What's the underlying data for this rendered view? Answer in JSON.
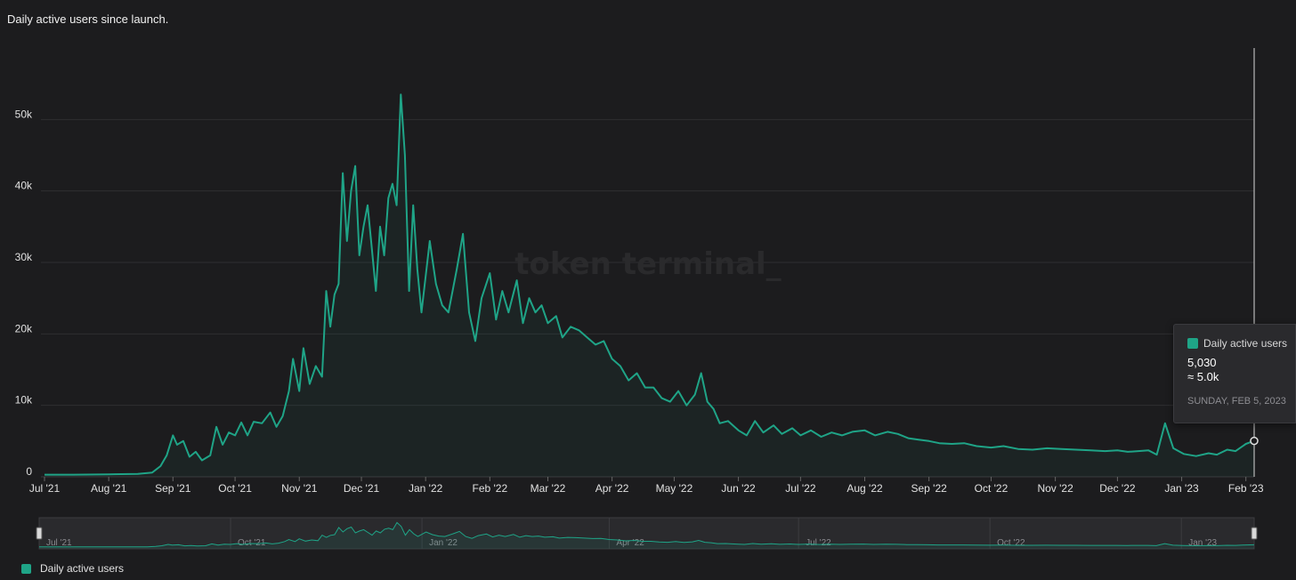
{
  "title": "Daily active users since launch.",
  "watermark": "token terminal_",
  "accent_color": "#1fa487",
  "chart_data": {
    "type": "area",
    "title": "Daily active users since launch.",
    "xlabel": "",
    "ylabel": "",
    "ylim": [
      0,
      60000
    ],
    "y_ticks": [
      0,
      10000,
      20000,
      30000,
      40000,
      50000
    ],
    "y_tick_labels": [
      "0",
      "10k",
      "20k",
      "30k",
      "40k",
      "50k"
    ],
    "x_tick_dates": [
      "2021-07-01",
      "2021-08-01",
      "2021-09-01",
      "2021-10-01",
      "2021-11-01",
      "2021-12-01",
      "2022-01-01",
      "2022-02-01",
      "2022-03-01",
      "2022-04-01",
      "2022-05-01",
      "2022-06-01",
      "2022-07-01",
      "2022-08-01",
      "2022-09-01",
      "2022-10-01",
      "2022-11-01",
      "2022-12-01",
      "2023-01-01",
      "2023-02-01"
    ],
    "x_tick_labels": [
      "Jul '21",
      "Aug '21",
      "Sep '21",
      "Oct '21",
      "Nov '21",
      "Dec '21",
      "Jan '22",
      "Feb '22",
      "Mar '22",
      "Apr '22",
      "May '22",
      "Jun '22",
      "Jul '22",
      "Aug '22",
      "Sep '22",
      "Oct '22",
      "Nov '22",
      "Dec '22",
      "Jan '23",
      "Feb '23"
    ],
    "xlim": [
      "2021-07-01",
      "2023-02-05"
    ],
    "grid": true,
    "legend": "bottom-left",
    "series": [
      {
        "name": "Daily active users",
        "color": "#1fa487",
        "points": [
          [
            "2021-07-01",
            300
          ],
          [
            "2021-07-15",
            300
          ],
          [
            "2021-08-01",
            350
          ],
          [
            "2021-08-15",
            400
          ],
          [
            "2021-08-22",
            600
          ],
          [
            "2021-08-26",
            1500
          ],
          [
            "2021-08-29",
            3000
          ],
          [
            "2021-09-01",
            5800
          ],
          [
            "2021-09-03",
            4500
          ],
          [
            "2021-09-06",
            5000
          ],
          [
            "2021-09-09",
            2800
          ],
          [
            "2021-09-12",
            3500
          ],
          [
            "2021-09-15",
            2300
          ],
          [
            "2021-09-19",
            3000
          ],
          [
            "2021-09-22",
            7000
          ],
          [
            "2021-09-25",
            4500
          ],
          [
            "2021-09-28",
            6200
          ],
          [
            "2021-10-01",
            5800
          ],
          [
            "2021-10-04",
            7600
          ],
          [
            "2021-10-07",
            5800
          ],
          [
            "2021-10-10",
            7700
          ],
          [
            "2021-10-14",
            7500
          ],
          [
            "2021-10-18",
            9000
          ],
          [
            "2021-10-21",
            7000
          ],
          [
            "2021-10-24",
            8500
          ],
          [
            "2021-10-27",
            12000
          ],
          [
            "2021-10-29",
            16500
          ],
          [
            "2021-11-01",
            12000
          ],
          [
            "2021-11-03",
            18000
          ],
          [
            "2021-11-06",
            13000
          ],
          [
            "2021-11-09",
            15500
          ],
          [
            "2021-11-12",
            14000
          ],
          [
            "2021-11-14",
            26000
          ],
          [
            "2021-11-16",
            21000
          ],
          [
            "2021-11-18",
            25500
          ],
          [
            "2021-11-20",
            27000
          ],
          [
            "2021-11-22",
            42500
          ],
          [
            "2021-11-24",
            33000
          ],
          [
            "2021-11-26",
            40000
          ],
          [
            "2021-11-28",
            43500
          ],
          [
            "2021-11-30",
            31000
          ],
          [
            "2021-12-02",
            35000
          ],
          [
            "2021-12-04",
            38000
          ],
          [
            "2021-12-06",
            32000
          ],
          [
            "2021-12-08",
            26000
          ],
          [
            "2021-12-10",
            35000
          ],
          [
            "2021-12-12",
            31000
          ],
          [
            "2021-12-14",
            39000
          ],
          [
            "2021-12-16",
            41000
          ],
          [
            "2021-12-18",
            38000
          ],
          [
            "2021-12-20",
            53500
          ],
          [
            "2021-12-22",
            45000
          ],
          [
            "2021-12-24",
            26000
          ],
          [
            "2021-12-26",
            38000
          ],
          [
            "2021-12-28",
            29000
          ],
          [
            "2021-12-30",
            23000
          ],
          [
            "2022-01-03",
            33000
          ],
          [
            "2022-01-06",
            27000
          ],
          [
            "2022-01-09",
            24000
          ],
          [
            "2022-01-12",
            23000
          ],
          [
            "2022-01-16",
            29000
          ],
          [
            "2022-01-19",
            34000
          ],
          [
            "2022-01-22",
            23000
          ],
          [
            "2022-01-25",
            19000
          ],
          [
            "2022-01-28",
            25000
          ],
          [
            "2022-02-01",
            28500
          ],
          [
            "2022-02-04",
            22000
          ],
          [
            "2022-02-07",
            26000
          ],
          [
            "2022-02-10",
            23000
          ],
          [
            "2022-02-14",
            27500
          ],
          [
            "2022-02-17",
            21500
          ],
          [
            "2022-02-20",
            25000
          ],
          [
            "2022-02-23",
            23000
          ],
          [
            "2022-02-26",
            24000
          ],
          [
            "2022-03-01",
            21500
          ],
          [
            "2022-03-05",
            22500
          ],
          [
            "2022-03-08",
            19500
          ],
          [
            "2022-03-12",
            21000
          ],
          [
            "2022-03-16",
            20500
          ],
          [
            "2022-03-20",
            19500
          ],
          [
            "2022-03-24",
            18500
          ],
          [
            "2022-03-28",
            19000
          ],
          [
            "2022-04-01",
            16500
          ],
          [
            "2022-04-05",
            15500
          ],
          [
            "2022-04-09",
            13500
          ],
          [
            "2022-04-13",
            14500
          ],
          [
            "2022-04-17",
            12500
          ],
          [
            "2022-04-21",
            12500
          ],
          [
            "2022-04-25",
            11000
          ],
          [
            "2022-04-29",
            10500
          ],
          [
            "2022-05-03",
            12000
          ],
          [
            "2022-05-07",
            10000
          ],
          [
            "2022-05-11",
            11500
          ],
          [
            "2022-05-14",
            14500
          ],
          [
            "2022-05-17",
            10500
          ],
          [
            "2022-05-20",
            9500
          ],
          [
            "2022-05-23",
            7500
          ],
          [
            "2022-05-27",
            7800
          ],
          [
            "2022-06-01",
            6500
          ],
          [
            "2022-06-05",
            5800
          ],
          [
            "2022-06-09",
            7800
          ],
          [
            "2022-06-13",
            6200
          ],
          [
            "2022-06-18",
            7200
          ],
          [
            "2022-06-22",
            6000
          ],
          [
            "2022-06-27",
            6800
          ],
          [
            "2022-07-01",
            5800
          ],
          [
            "2022-07-06",
            6500
          ],
          [
            "2022-07-11",
            5600
          ],
          [
            "2022-07-16",
            6200
          ],
          [
            "2022-07-21",
            5800
          ],
          [
            "2022-07-26",
            6300
          ],
          [
            "2022-08-01",
            6500
          ],
          [
            "2022-08-06",
            5800
          ],
          [
            "2022-08-12",
            6300
          ],
          [
            "2022-08-17",
            6000
          ],
          [
            "2022-08-22",
            5400
          ],
          [
            "2022-08-27",
            5200
          ],
          [
            "2022-09-01",
            5000
          ],
          [
            "2022-09-06",
            4700
          ],
          [
            "2022-09-12",
            4600
          ],
          [
            "2022-09-18",
            4700
          ],
          [
            "2022-09-24",
            4300
          ],
          [
            "2022-10-01",
            4100
          ],
          [
            "2022-10-07",
            4300
          ],
          [
            "2022-10-14",
            3900
          ],
          [
            "2022-10-21",
            3800
          ],
          [
            "2022-10-28",
            4000
          ],
          [
            "2022-11-04",
            3900
          ],
          [
            "2022-11-11",
            3800
          ],
          [
            "2022-11-18",
            3700
          ],
          [
            "2022-11-25",
            3600
          ],
          [
            "2022-12-01",
            3700
          ],
          [
            "2022-12-06",
            3500
          ],
          [
            "2022-12-11",
            3600
          ],
          [
            "2022-12-16",
            3700
          ],
          [
            "2022-12-20",
            3100
          ],
          [
            "2022-12-24",
            7500
          ],
          [
            "2022-12-28",
            4000
          ],
          [
            "2023-01-02",
            3200
          ],
          [
            "2023-01-08",
            2900
          ],
          [
            "2023-01-14",
            3300
          ],
          [
            "2023-01-18",
            3100
          ],
          [
            "2023-01-23",
            3800
          ],
          [
            "2023-01-27",
            3600
          ],
          [
            "2023-02-01",
            4600
          ],
          [
            "2023-02-05",
            5030
          ]
        ]
      }
    ],
    "tooltip": {
      "series": "Daily active users",
      "value": "5,030",
      "approx": "≈ 5.0k",
      "date": "SUNDAY, FEB 5, 2023"
    },
    "navigator_labels": [
      "Jul '21",
      "Oct '21",
      "Jan '22",
      "Apr '22",
      "Jul '22",
      "Oct '22",
      "Jan '23"
    ],
    "navigator_dates": [
      "2021-07-01",
      "2021-10-01",
      "2022-01-01",
      "2022-04-01",
      "2022-07-01",
      "2022-10-01",
      "2023-01-01"
    ]
  }
}
